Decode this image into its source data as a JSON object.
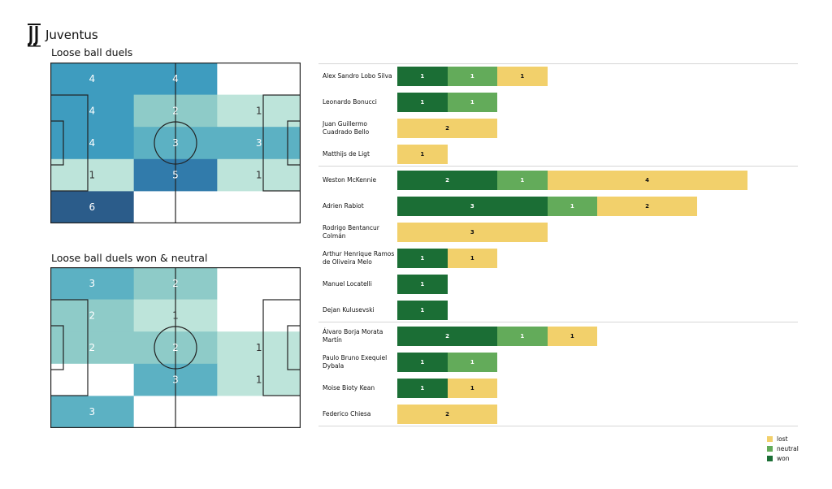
{
  "header": {
    "team": "Juventus",
    "logo": "juventus-logo"
  },
  "pitches": [
    {
      "title": "Loose ball duels",
      "grid": [
        [
          4,
          4,
          null
        ],
        [
          4,
          2,
          1
        ],
        [
          4,
          3,
          3
        ],
        [
          1,
          5,
          1
        ],
        [
          6,
          null,
          null
        ]
      ]
    },
    {
      "title": "Loose ball duels won & neutral",
      "grid": [
        [
          3,
          2,
          null
        ],
        [
          2,
          1,
          null
        ],
        [
          2,
          2,
          1
        ],
        [
          null,
          3,
          1
        ],
        [
          3,
          null,
          null
        ]
      ]
    }
  ],
  "colors": {
    "won": "#1b6e35",
    "neutral": "#63ab5a",
    "lost": "#f2d06b",
    "heat": [
      "#ffffff",
      "#bde4da",
      "#8ecbc8",
      "#5cb1c3",
      "#3e9cbf",
      "#317bab",
      "#2b5c8a"
    ]
  },
  "chart_data": {
    "type": "bar",
    "stacked": true,
    "orientation": "horizontal",
    "series_order": [
      "won",
      "neutral",
      "lost"
    ],
    "players": [
      {
        "name": "Alex Sandro Lobo Silva",
        "won": 1,
        "neutral": 1,
        "lost": 1
      },
      {
        "name": "Leonardo Bonucci",
        "won": 1,
        "neutral": 1,
        "lost": 0
      },
      {
        "name": "Juan Guillermo Cuadrado Bello",
        "won": 0,
        "neutral": 0,
        "lost": 2
      },
      {
        "name": "Matthijs de Ligt",
        "won": 0,
        "neutral": 0,
        "lost": 1
      },
      {
        "name": "Weston  McKennie",
        "won": 2,
        "neutral": 1,
        "lost": 4
      },
      {
        "name": "Adrien Rabiot",
        "won": 3,
        "neutral": 1,
        "lost": 2
      },
      {
        "name": "Rodrigo Bentancur Colmán",
        "won": 0,
        "neutral": 0,
        "lost": 3
      },
      {
        "name": "Arthur Henrique Ramos de Oliveira Melo",
        "won": 1,
        "neutral": 0,
        "lost": 1
      },
      {
        "name": "Manuel Locatelli",
        "won": 1,
        "neutral": 0,
        "lost": 0
      },
      {
        "name": "Dejan Kulusevski",
        "won": 1,
        "neutral": 0,
        "lost": 0
      },
      {
        "name": "Álvaro Borja Morata Martín",
        "won": 2,
        "neutral": 1,
        "lost": 1
      },
      {
        "name": "Paulo Bruno Exequiel Dybala",
        "won": 1,
        "neutral": 1,
        "lost": 0
      },
      {
        "name": "Moise Bioty Kean",
        "won": 1,
        "neutral": 0,
        "lost": 1
      },
      {
        "name": "Federico Chiesa",
        "won": 0,
        "neutral": 0,
        "lost": 2
      }
    ],
    "group_breaks_after": [
      3,
      9
    ],
    "xlim": [
      0,
      7
    ]
  },
  "legend": [
    "lost",
    "neutral",
    "won"
  ]
}
